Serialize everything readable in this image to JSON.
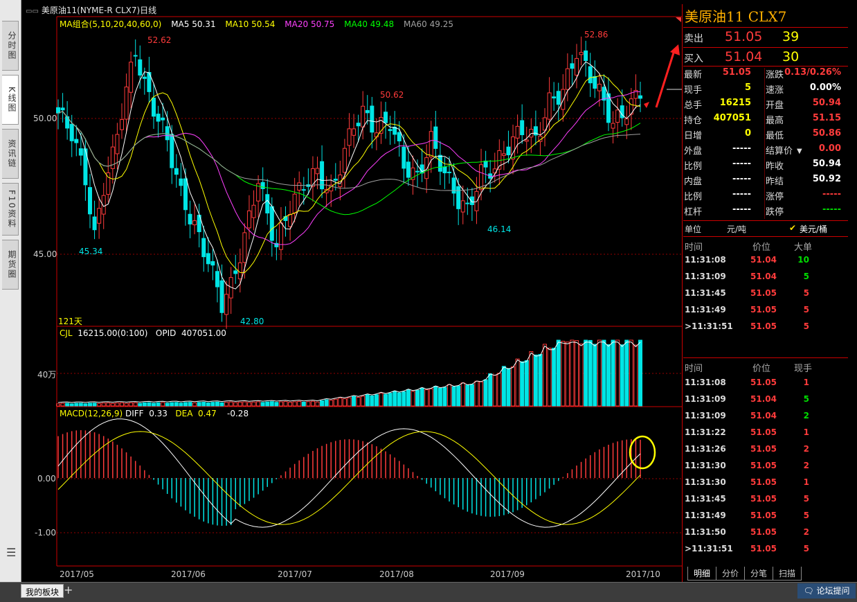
{
  "left_tabs": [
    {
      "label": "分时图",
      "active": false
    },
    {
      "label": "K线图",
      "active": true
    },
    {
      "label": "资讯链",
      "active": false
    },
    {
      "label": "F10资料",
      "active": false
    },
    {
      "label": "期货圈",
      "active": false
    }
  ],
  "left_menu_icon": "menu-icon",
  "title": "美原油11(NYME-R CLX7)日线",
  "ma": {
    "label": "MA组合(5,10,20,40,60,0)",
    "items": [
      {
        "name": "MA5",
        "value": "50.31",
        "color": "#ffffff"
      },
      {
        "name": "MA10",
        "value": "50.54",
        "color": "#ffff00"
      },
      {
        "name": "MA20",
        "value": "50.75",
        "color": "#ff40ff"
      },
      {
        "name": "MA40",
        "value": "49.48",
        "color": "#00ff00"
      },
      {
        "name": "MA60",
        "value": "49.25",
        "color": "#a0a0a0"
      }
    ]
  },
  "price_axis": [
    "50.00",
    "45.00"
  ],
  "price_annotations": {
    "high1": "52.62",
    "low1": "45.34",
    "low2": "42.80",
    "high2": "50.62",
    "low3": "46.14",
    "high3": "52.86"
  },
  "days_label": "121天",
  "volume": {
    "label": "CJL",
    "value": "16215.00(0:100)",
    "opid_label": "OPID",
    "opid_value": "407051.00",
    "axis": "40万"
  },
  "macd": {
    "label": "MACD(12,26,9)",
    "diff_label": "DIFF",
    "diff": "0.33",
    "dea_label": "DEA",
    "dea": "0.47",
    "macd_val": "-0.28",
    "axis": [
      "0.00",
      "-1.00"
    ]
  },
  "months": [
    "2017/05",
    "2017/06",
    "2017/07",
    "2017/08",
    "2017/09",
    "2017/10"
  ],
  "quote": {
    "title": "美原油11  CLX7",
    "sell_label": "卖出",
    "sell_price": "51.05",
    "sell_vol": "39",
    "buy_label": "买入",
    "buy_price": "51.04",
    "buy_vol": "30",
    "rows": [
      {
        "l1": "最新",
        "v1": "51.05",
        "c1": "red",
        "l2": "涨跌",
        "v2": "0.13/0.26%",
        "c2": "red"
      },
      {
        "l1": "现手",
        "v1": "5",
        "c1": "yel",
        "l2": "速涨",
        "v2": "0.00%",
        "c2": "wht"
      },
      {
        "l1": "总手",
        "v1": "16215",
        "c1": "yel",
        "l2": "开盘",
        "v2": "50.94",
        "c2": "red"
      },
      {
        "l1": "持仓",
        "v1": "407051",
        "c1": "yel",
        "l2": "最高",
        "v2": "51.15",
        "c2": "red"
      },
      {
        "l1": "日增",
        "v1": "0",
        "c1": "yel",
        "l2": "最低",
        "v2": "50.86",
        "c2": "red"
      },
      {
        "l1": "外盘",
        "v1": "-----",
        "c1": "wht",
        "l2": "结算价",
        "v2": "0.00",
        "c2": "red"
      },
      {
        "l1": "比例",
        "v1": "-----",
        "c1": "wht",
        "l2": "昨收",
        "v2": "50.94",
        "c2": "wht"
      },
      {
        "l1": "内盘",
        "v1": "-----",
        "c1": "wht",
        "l2": "昨结",
        "v2": "50.92",
        "c2": "wht"
      },
      {
        "l1": "比例",
        "v1": "-----",
        "c1": "wht",
        "l2": "涨停",
        "v2": "-----",
        "c2": "red"
      },
      {
        "l1": "杠杆",
        "v1": "-----",
        "c1": "wht",
        "l2": "跌停",
        "v2": "-----",
        "c2": "grn"
      }
    ],
    "unit_label": "单位",
    "unit_value": "元/吨",
    "unit_alt": "美元/桶",
    "big_orders_header": [
      "时间",
      "价位",
      "大单"
    ],
    "big_orders": [
      {
        "t": "11:31:08",
        "p": "51.04",
        "v": "10",
        "vc": "grn"
      },
      {
        "t": "11:31:09",
        "p": "51.04",
        "v": "5",
        "vc": "grn"
      },
      {
        "t": "11:31:45",
        "p": "51.05",
        "v": "5",
        "vc": "red"
      },
      {
        "t": "11:31:49",
        "p": "51.05",
        "v": "5",
        "vc": "red"
      },
      {
        "t": ">11:31:51",
        "p": "51.05",
        "v": "5",
        "vc": "red"
      }
    ],
    "ticks_header": [
      "时间",
      "价位",
      "现手"
    ],
    "ticks": [
      {
        "t": "11:31:08",
        "p": "51.05",
        "pc": "red",
        "v": "1",
        "vc": "red"
      },
      {
        "t": "11:31:09",
        "p": "51.04",
        "pc": "red",
        "v": "5",
        "vc": "grn"
      },
      {
        "t": "11:31:09",
        "p": "51.04",
        "pc": "red",
        "v": "2",
        "vc": "grn"
      },
      {
        "t": "11:31:22",
        "p": "51.05",
        "pc": "red",
        "v": "1",
        "vc": "red"
      },
      {
        "t": "11:31:26",
        "p": "51.05",
        "pc": "red",
        "v": "2",
        "vc": "red"
      },
      {
        "t": "11:31:30",
        "p": "51.05",
        "pc": "red",
        "v": "2",
        "vc": "red"
      },
      {
        "t": "11:31:30",
        "p": "51.05",
        "pc": "red",
        "v": "1",
        "vc": "red"
      },
      {
        "t": "11:31:45",
        "p": "51.05",
        "pc": "red",
        "v": "5",
        "vc": "red"
      },
      {
        "t": "11:31:49",
        "p": "51.05",
        "pc": "red",
        "v": "5",
        "vc": "red"
      },
      {
        "t": "11:31:50",
        "p": "51.05",
        "pc": "red",
        "v": "2",
        "vc": "red"
      },
      {
        "t": ">11:31:51",
        "p": "51.05",
        "pc": "red",
        "v": "5",
        "vc": "red"
      }
    ],
    "bottom_tabs": [
      "明细",
      "分价",
      "分笔",
      "扫描"
    ]
  },
  "status": {
    "my_block": "我的板块",
    "add": "+",
    "forum": "论坛提问"
  },
  "colors": {
    "up": "#ff3b3b",
    "down": "#00e5e5",
    "grid": "#b00000"
  }
}
